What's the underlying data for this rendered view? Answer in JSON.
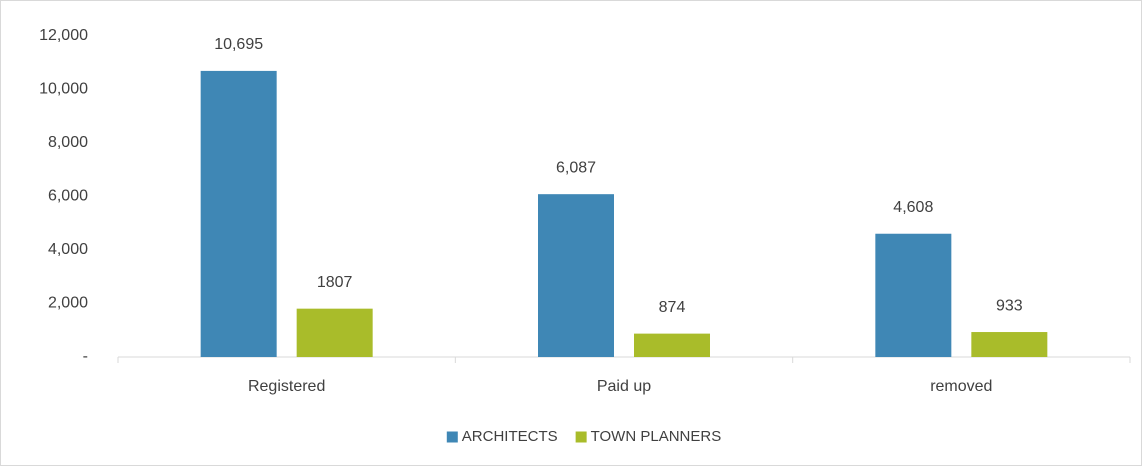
{
  "chart_data": {
    "type": "bar",
    "categories": [
      "Registered",
      "Paid up",
      "removed"
    ],
    "series": [
      {
        "name": "ARCHITECTS",
        "color": "#3f87b5",
        "values": [
          10695,
          6087,
          4608
        ],
        "value_labels": [
          "10,695",
          "6,087",
          "4,608"
        ]
      },
      {
        "name": "TOWN PLANNERS",
        "color": "#a9bc2a",
        "values": [
          1807,
          874,
          933
        ]
      }
    ],
    "ylim": [
      0,
      12000
    ],
    "yticks": [
      {
        "value": 0,
        "label": "-"
      },
      {
        "value": 2000,
        "label": "2,000"
      },
      {
        "value": 4000,
        "label": "4,000"
      },
      {
        "value": 6000,
        "label": "6,000"
      },
      {
        "value": 8000,
        "label": "8,000"
      },
      {
        "value": 10000,
        "label": "10,000"
      },
      {
        "value": 12000,
        "label": "12,000"
      }
    ],
    "grid": false,
    "legend": "bottom"
  }
}
